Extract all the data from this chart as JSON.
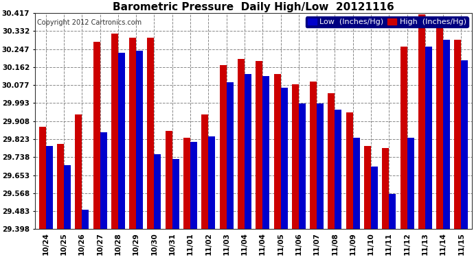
{
  "title": "Barometric Pressure  Daily High/Low  20121116",
  "copyright": "Copyright 2012 Cartronics.com",
  "legend_low": "Low  (Inches/Hg)",
  "legend_high": "High  (Inches/Hg)",
  "low_color": "#0000cc",
  "high_color": "#cc0000",
  "background_color": "#ffffff",
  "grid_color": "#888888",
  "ymin": 29.398,
  "ymax": 30.417,
  "yticks": [
    29.398,
    29.483,
    29.568,
    29.653,
    29.738,
    29.823,
    29.908,
    29.993,
    30.077,
    30.162,
    30.247,
    30.332,
    30.417
  ],
  "categories": [
    "10/24",
    "10/25",
    "10/26",
    "10/27",
    "10/28",
    "10/29",
    "10/30",
    "10/31",
    "11/01",
    "11/02",
    "11/03",
    "11/04",
    "11/04",
    "11/05",
    "11/06",
    "11/07",
    "11/08",
    "11/09",
    "11/10",
    "11/11",
    "11/12",
    "11/13",
    "11/14",
    "11/15"
  ],
  "high_values": [
    29.88,
    29.8,
    29.94,
    30.28,
    30.32,
    30.3,
    30.3,
    29.86,
    29.83,
    29.94,
    30.17,
    30.2,
    30.19,
    30.13,
    30.08,
    30.095,
    30.04,
    29.95,
    29.79,
    29.78,
    30.26,
    30.41,
    30.4,
    30.29
  ],
  "low_values": [
    29.79,
    29.7,
    29.49,
    29.855,
    30.23,
    30.24,
    29.75,
    29.73,
    29.81,
    29.835,
    30.09,
    30.13,
    30.12,
    30.065,
    29.99,
    29.99,
    29.96,
    29.83,
    29.695,
    29.565,
    29.83,
    30.26,
    30.29,
    30.195
  ],
  "title_fontsize": 11,
  "tick_fontsize": 7.5,
  "copyright_fontsize": 7,
  "legend_fontsize": 8
}
